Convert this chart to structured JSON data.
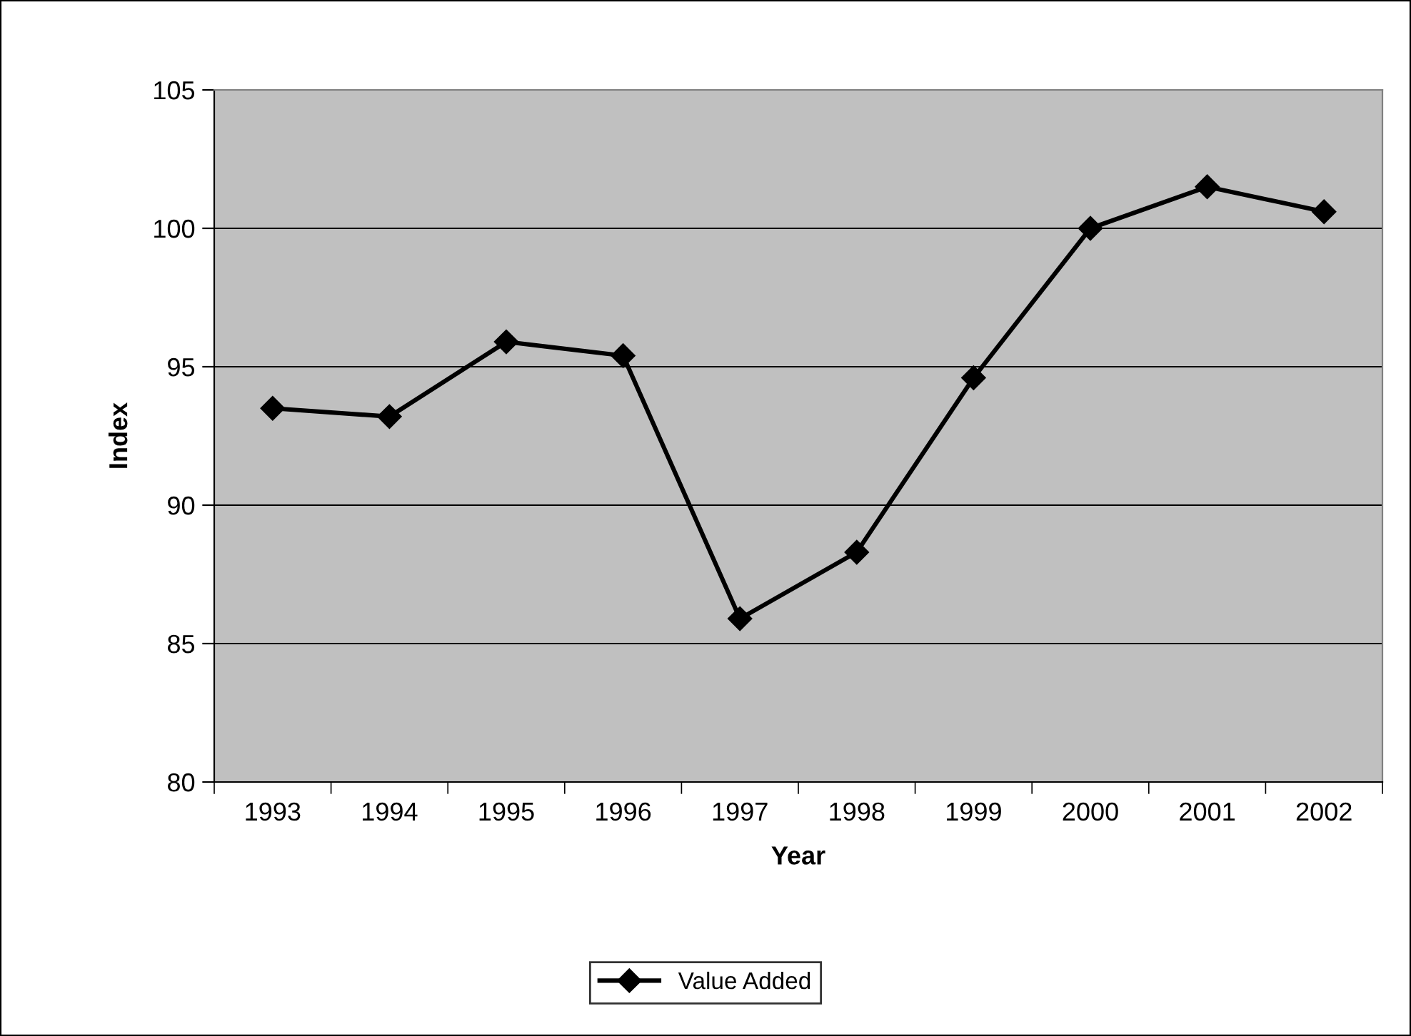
{
  "chart_data": {
    "type": "line",
    "xlabel": "Year",
    "ylabel": "Index",
    "categories": [
      "1993",
      "1994",
      "1995",
      "1996",
      "1997",
      "1998",
      "1999",
      "2000",
      "2001",
      "2002"
    ],
    "series": [
      {
        "name": "Value Added",
        "color": "#000000",
        "values": [
          93.5,
          93.2,
          95.9,
          95.4,
          85.9,
          88.3,
          94.6,
          100.0,
          101.5,
          100.6
        ]
      }
    ],
    "ylim": [
      80,
      105
    ],
    "yticks": [
      80,
      85,
      90,
      95,
      100,
      105
    ],
    "grid": "y",
    "legend": "bottom",
    "marker": "diamond",
    "line_style": "solid"
  }
}
